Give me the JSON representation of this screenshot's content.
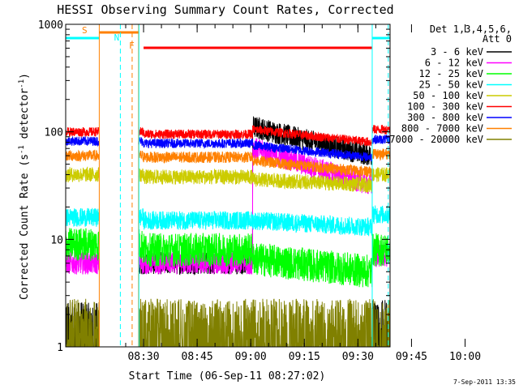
{
  "chart_data": {
    "type": "line",
    "title": "HESSI Observing Summary Count Rates, Corrected",
    "xlabel": "Start Time (06-Sep-11 08:27:02)",
    "ylabel_main": "Corrected Count Rate (s",
    "ylabel_sup1": "-1",
    "ylabel_mid": " detector",
    "ylabel_sup2": "-1",
    "ylabel_end": ")",
    "footer": "7-Sep-2011 13:35",
    "y_scale": "log",
    "ylim": [
      1,
      1000
    ],
    "xlim_minutes": [
      8.2,
      99
    ],
    "x_ticks": [
      {
        "label": "08:30",
        "minute": 30
      },
      {
        "label": "08:45",
        "minute": 45
      },
      {
        "label": "09:00",
        "minute": 60
      },
      {
        "label": "09:15",
        "minute": 75
      },
      {
        "label": "09:30",
        "minute": 90
      },
      {
        "label": "09:45",
        "minute": 105
      },
      {
        "label": "10:00",
        "minute": 120
      }
    ],
    "y_ticks": [
      {
        "label": "1",
        "value": 1
      },
      {
        "label": "10",
        "value": 10
      },
      {
        "label": "100",
        "value": 100
      },
      {
        "label": "1000",
        "value": 1000
      }
    ],
    "legend_header": [
      "Det 1,3,4,5,6,",
      "Att 0"
    ],
    "legend_position": "right",
    "series": [
      {
        "name": "3 - 6 keV",
        "color": "#000000"
      },
      {
        "name": "6 - 12 keV",
        "color": "#ff00ff"
      },
      {
        "name": "12 - 25 keV",
        "color": "#00ff00"
      },
      {
        "name": "25 - 50 keV",
        "color": "#00ffff"
      },
      {
        "name": "50 - 100 keV",
        "color": "#cccc00"
      },
      {
        "name": "100 - 300 keV",
        "color": "#ff0000"
      },
      {
        "name": "300 - 800 keV",
        "color": "#0000ff"
      },
      {
        "name": "800 - 7000 keV",
        "color": "#ff8000"
      },
      {
        "name": "7000 - 20000 keV",
        "color": "#808000"
      }
    ],
    "flags": [
      {
        "label": "S",
        "color": "#ff8000"
      },
      {
        "label": "N",
        "color": "#00ffff"
      },
      {
        "label": "F",
        "color": "#ff8000"
      }
    ]
  }
}
